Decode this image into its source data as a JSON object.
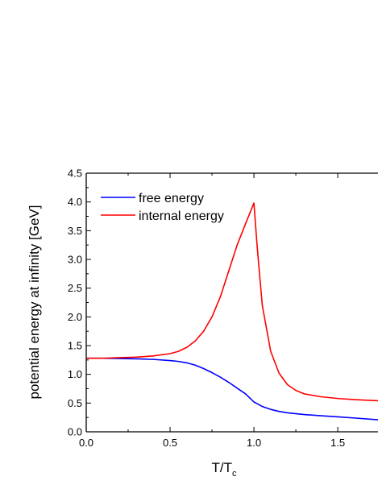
{
  "chart_data": {
    "type": "line",
    "xlabel": "T/T",
    "xlabel_subscript": "c",
    "ylabel": "potential energy at infinity [GeV]",
    "xlim": [
      0.0,
      1.74
    ],
    "ylim": [
      0.0,
      4.5
    ],
    "x_ticks": [
      "0.0",
      "0.5",
      "1.0",
      "1.5"
    ],
    "y_ticks": [
      "0.0",
      "0.5",
      "1.0",
      "1.5",
      "2.0",
      "2.5",
      "3.0",
      "3.5",
      "4.0",
      "4.5"
    ],
    "grid": false,
    "legend": "top-left",
    "series": [
      {
        "name": "free energy",
        "color": "#0000ff",
        "x": [
          0.0,
          0.1,
          0.2,
          0.3,
          0.4,
          0.5,
          0.55,
          0.6,
          0.65,
          0.7,
          0.75,
          0.8,
          0.85,
          0.9,
          0.95,
          1.0,
          1.05,
          1.1,
          1.15,
          1.2,
          1.3,
          1.4,
          1.5,
          1.6,
          1.74
        ],
        "y": [
          1.28,
          1.28,
          1.275,
          1.27,
          1.26,
          1.24,
          1.225,
          1.2,
          1.16,
          1.1,
          1.03,
          0.95,
          0.86,
          0.76,
          0.66,
          0.52,
          0.44,
          0.39,
          0.355,
          0.33,
          0.3,
          0.28,
          0.26,
          0.24,
          0.21
        ]
      },
      {
        "name": "internal energy",
        "color": "#ff0000",
        "x": [
          0.0,
          0.1,
          0.2,
          0.3,
          0.4,
          0.5,
          0.55,
          0.6,
          0.65,
          0.7,
          0.75,
          0.8,
          0.85,
          0.9,
          0.95,
          1.0,
          1.02,
          1.05,
          1.1,
          1.15,
          1.2,
          1.25,
          1.3,
          1.4,
          1.5,
          1.6,
          1.74
        ],
        "y": [
          1.28,
          1.28,
          1.29,
          1.3,
          1.32,
          1.36,
          1.4,
          1.47,
          1.58,
          1.75,
          2.0,
          2.35,
          2.8,
          3.25,
          3.62,
          3.98,
          3.2,
          2.2,
          1.4,
          1.02,
          0.82,
          0.72,
          0.66,
          0.61,
          0.58,
          0.56,
          0.54
        ]
      }
    ]
  }
}
